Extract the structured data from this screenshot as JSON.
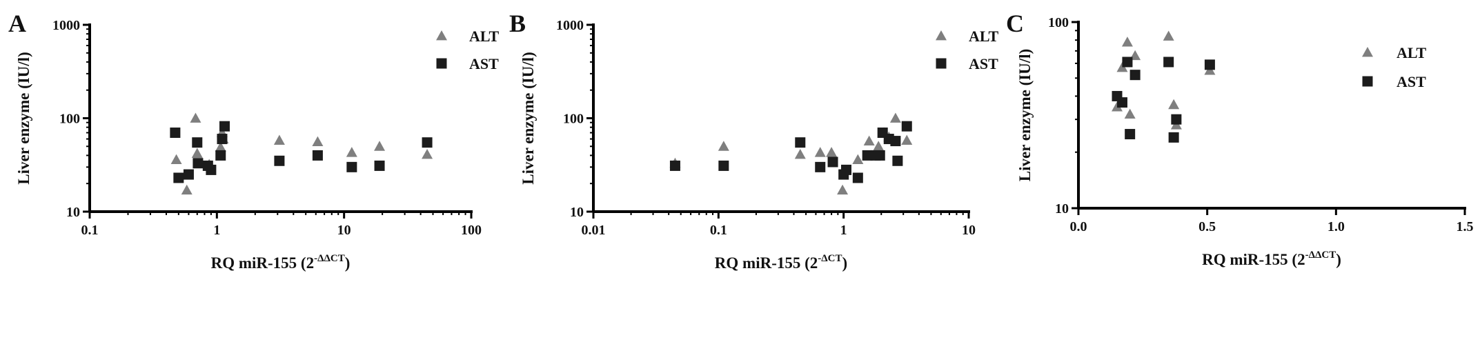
{
  "colors": {
    "alt": "#7f7f7f",
    "ast": "#1c1c1c",
    "axis": "#000000"
  },
  "chart_data": [
    {
      "panel": "A",
      "type": "scatter",
      "xscale": "log",
      "yscale": "log",
      "xlim": [
        0.1,
        100
      ],
      "ylim": [
        10,
        1000
      ],
      "xticks": [
        "0.1",
        "1",
        "10",
        "100"
      ],
      "yticks": [
        "10",
        "100",
        "1000"
      ],
      "xlabel": "RQ miR-155 (2",
      "xlabel_sup": "-ΔΔCT",
      "xlabel_end": ")",
      "ylabel": "Liver enzyme (IU/l)",
      "legend_position": "top-right",
      "grid": false,
      "series": [
        {
          "name": "ALT",
          "marker": "triangle",
          "x": [
            0.48,
            0.58,
            0.68,
            0.7,
            0.87,
            1.07,
            1.1,
            1.12,
            3.1,
            6.2,
            11.5,
            19.0,
            45.0
          ],
          "y": [
            36,
            17,
            100,
            42,
            32,
            49,
            70,
            60,
            58,
            56,
            43,
            50,
            41
          ]
        },
        {
          "name": "AST",
          "marker": "square",
          "x": [
            0.47,
            0.5,
            0.6,
            0.7,
            0.71,
            0.85,
            0.9,
            1.07,
            1.1,
            1.15,
            3.1,
            6.2,
            11.5,
            19.0,
            45.0
          ],
          "y": [
            70,
            23,
            25,
            55,
            33,
            31,
            28,
            40,
            60,
            82,
            35,
            40,
            30,
            31,
            55
          ]
        }
      ]
    },
    {
      "panel": "B",
      "type": "scatter",
      "xscale": "log",
      "yscale": "log",
      "xlim": [
        0.01,
        10
      ],
      "ylim": [
        10,
        1000
      ],
      "xticks": [
        "0.01",
        "0.1",
        "1",
        "10"
      ],
      "yticks": [
        "10",
        "100",
        "1000"
      ],
      "xlabel": "RQ miR-155 (2",
      "xlabel_sup": "-ΔCT",
      "xlabel_end": ")",
      "ylabel": "Liver enzyme (IU/l)",
      "legend_position": "top-right",
      "grid": false,
      "series": [
        {
          "name": "ALT",
          "marker": "triangle",
          "x": [
            0.045,
            0.11,
            0.45,
            0.65,
            0.8,
            0.98,
            1.3,
            1.6,
            1.9,
            2.1,
            2.3,
            2.6,
            3.2
          ],
          "y": [
            33,
            50,
            41,
            43,
            43,
            17,
            36,
            57,
            50,
            70,
            63,
            100,
            58
          ]
        },
        {
          "name": "AST",
          "marker": "square",
          "x": [
            0.045,
            0.11,
            0.45,
            0.65,
            0.82,
            1.0,
            1.05,
            1.3,
            1.55,
            1.8,
            1.95,
            2.05,
            2.3,
            2.6,
            2.7,
            3.2
          ],
          "y": [
            31,
            31,
            55,
            30,
            34,
            25,
            28,
            23,
            40,
            40,
            40,
            70,
            60,
            57,
            35,
            82
          ]
        }
      ]
    },
    {
      "panel": "C",
      "type": "scatter",
      "xscale": "linear",
      "yscale": "log",
      "xlim": [
        0.0,
        1.5
      ],
      "ylim": [
        10,
        100
      ],
      "xticks": [
        "0.0",
        "0.5",
        "1.0",
        "1.5"
      ],
      "yticks": [
        "10",
        "100"
      ],
      "xlabel": "RQ miR-155 (2",
      "xlabel_sup": "-ΔΔCT",
      "xlabel_end": ")",
      "ylabel": "Liver enzyme (IU/l)",
      "legend_position": "top-right",
      "grid": false,
      "series": [
        {
          "name": "ALT",
          "marker": "triangle",
          "x": [
            0.15,
            0.17,
            0.19,
            0.2,
            0.22,
            0.35,
            0.37,
            0.38,
            0.51
          ],
          "y": [
            35,
            57,
            78,
            32,
            66,
            84,
            36,
            28,
            55
          ]
        },
        {
          "name": "AST",
          "marker": "square",
          "x": [
            0.15,
            0.17,
            0.19,
            0.2,
            0.22,
            0.35,
            0.37,
            0.38,
            0.51
          ],
          "y": [
            40,
            37,
            61,
            25,
            52,
            61,
            24,
            30,
            59
          ]
        }
      ]
    }
  ]
}
